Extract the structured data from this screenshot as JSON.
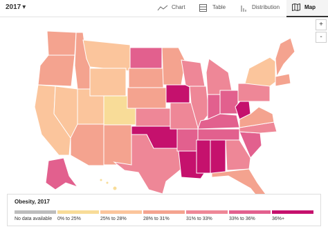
{
  "toolbar": {
    "year": "2017",
    "tabs": [
      "Chart",
      "Table",
      "Distribution",
      "Map"
    ]
  },
  "zoom": [
    "+",
    "-"
  ],
  "legend": {
    "title": "Obesity, 2017",
    "items": [
      {
        "label": "No data available",
        "color": "#bdbdbd"
      },
      {
        "label": "0% to 25%",
        "color": "#f8dc98"
      },
      {
        "label": "25% to 28%",
        "color": "#fbc59c"
      },
      {
        "label": "28% to 31%",
        "color": "#f4a38f"
      },
      {
        "label": "31% to 33%",
        "color": "#ee8797"
      },
      {
        "label": "33% to 36%",
        "color": "#e2608e"
      },
      {
        "label": "36%+",
        "color": "#c5116d"
      }
    ]
  }
}
